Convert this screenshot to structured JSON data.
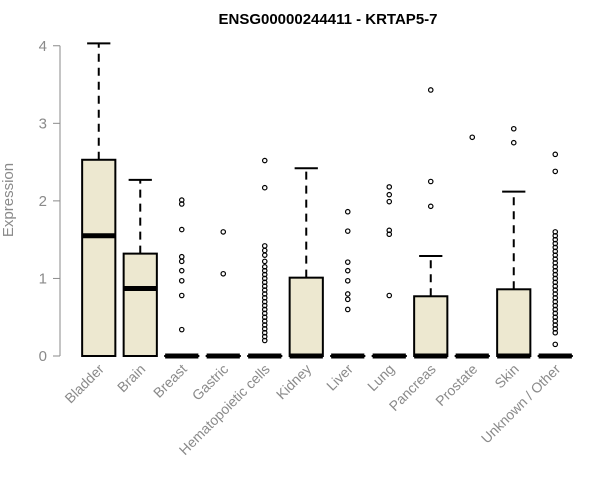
{
  "chart_data": {
    "type": "boxplot",
    "title": "ENSG00000244411 - KRTAP5-7",
    "ylabel": "Expression",
    "xlabel": "",
    "ylim": [
      0,
      4.1
    ],
    "yticks": [
      0,
      1,
      2,
      3,
      4
    ],
    "box_fill": "#ede8d0",
    "categories": [
      "Bladder",
      "Brain",
      "Breast",
      "Gastric",
      "Hematopoietic cells",
      "Kidney",
      "Liver",
      "Lung",
      "Pancreas",
      "Prostate",
      "Skin",
      "Unknown / Other"
    ],
    "boxes": [
      {
        "name": "Bladder",
        "lower_whisker": 0,
        "q1": 0,
        "median": 1.55,
        "q3": 2.53,
        "upper_whisker": 4.03,
        "outliers": []
      },
      {
        "name": "Brain",
        "lower_whisker": 0,
        "q1": 0,
        "median": 0.87,
        "q3": 1.32,
        "upper_whisker": 2.27,
        "outliers": []
      },
      {
        "name": "Breast",
        "lower_whisker": 0,
        "q1": 0,
        "median": 0,
        "q3": 0,
        "upper_whisker": 0,
        "outliers": [
          2.01,
          1.96,
          1.63,
          1.28,
          1.22,
          1.1,
          0.97,
          0.78,
          0.34
        ]
      },
      {
        "name": "Gastric",
        "lower_whisker": 0,
        "q1": 0,
        "median": 0,
        "q3": 0,
        "upper_whisker": 0,
        "outliers": [
          1.6,
          1.06
        ]
      },
      {
        "name": "Hematopoietic cells",
        "lower_whisker": 0,
        "q1": 0,
        "median": 0,
        "q3": 0,
        "upper_whisker": 0,
        "outliers": [
          2.52,
          2.17,
          1.42,
          1.36,
          1.3,
          1.22,
          1.15,
          1.1,
          1.05,
          1.0,
          0.95,
          0.9,
          0.85,
          0.8,
          0.75,
          0.7,
          0.65,
          0.6,
          0.55,
          0.5,
          0.45,
          0.4,
          0.35,
          0.3,
          0.25,
          0.2
        ]
      },
      {
        "name": "Kidney",
        "lower_whisker": 0,
        "q1": 0,
        "median": 0,
        "q3": 1.01,
        "upper_whisker": 2.42,
        "outliers": []
      },
      {
        "name": "Liver",
        "lower_whisker": 0,
        "q1": 0,
        "median": 0,
        "q3": 0,
        "upper_whisker": 0,
        "outliers": [
          1.86,
          1.61,
          1.21,
          1.1,
          0.97,
          0.8,
          0.73,
          0.6
        ]
      },
      {
        "name": "Lung",
        "lower_whisker": 0,
        "q1": 0,
        "median": 0,
        "q3": 0,
        "upper_whisker": 0,
        "outliers": [
          2.18,
          2.08,
          1.99,
          1.62,
          1.57,
          0.78
        ]
      },
      {
        "name": "Pancreas",
        "lower_whisker": 0,
        "q1": 0,
        "median": 0,
        "q3": 0.77,
        "upper_whisker": 1.29,
        "outliers": [
          3.43,
          2.25,
          1.93
        ]
      },
      {
        "name": "Prostate",
        "lower_whisker": 0,
        "q1": 0,
        "median": 0,
        "q3": 0,
        "upper_whisker": 0,
        "outliers": [
          2.82
        ]
      },
      {
        "name": "Skin",
        "lower_whisker": 0,
        "q1": 0,
        "median": 0,
        "q3": 0.86,
        "upper_whisker": 2.12,
        "outliers": [
          2.93,
          2.75
        ]
      },
      {
        "name": "Unknown / Other",
        "lower_whisker": 0,
        "q1": 0,
        "median": 0,
        "q3": 0,
        "upper_whisker": 0,
        "outliers": [
          2.6,
          2.38,
          1.6,
          1.55,
          1.5,
          1.45,
          1.4,
          1.35,
          1.3,
          1.25,
          1.2,
          1.15,
          1.1,
          1.05,
          1.0,
          0.95,
          0.9,
          0.85,
          0.8,
          0.75,
          0.7,
          0.65,
          0.6,
          0.55,
          0.5,
          0.45,
          0.4,
          0.35,
          0.3,
          0.15
        ]
      }
    ]
  }
}
